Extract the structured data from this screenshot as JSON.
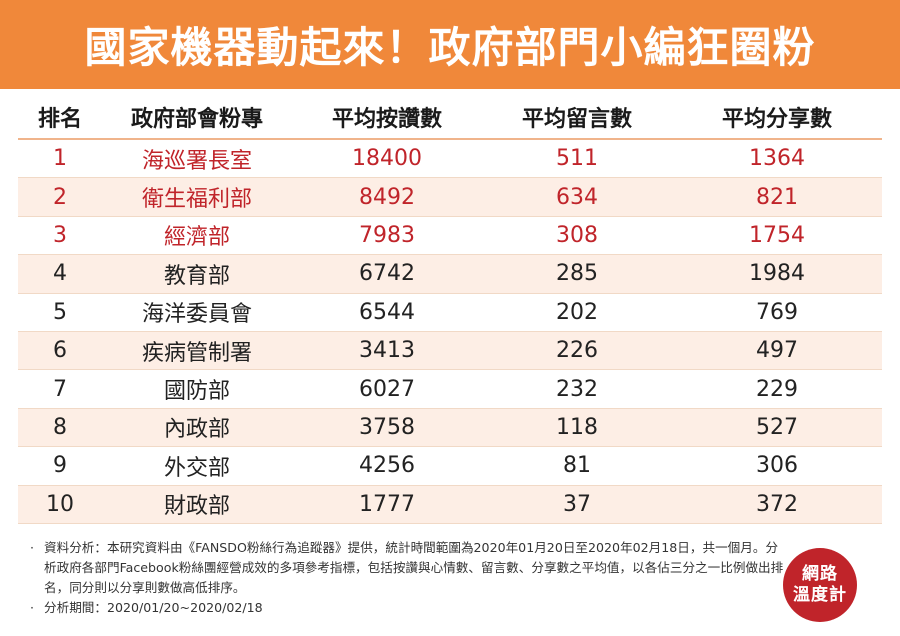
{
  "title": "國家機器動起來！政府部門小編狂圈粉",
  "table": {
    "headers": [
      "排名",
      "政府部會粉專",
      "平均按讚數",
      "平均留言數",
      "平均分享數"
    ],
    "rows": [
      {
        "rank": "1",
        "name": "海巡署長室",
        "likes": "18400",
        "comments": "511",
        "shares": "1364"
      },
      {
        "rank": "2",
        "name": "衛生福利部",
        "likes": "8492",
        "comments": "634",
        "shares": "821"
      },
      {
        "rank": "3",
        "name": "經濟部",
        "likes": "7983",
        "comments": "308",
        "shares": "1754"
      },
      {
        "rank": "4",
        "name": "教育部",
        "likes": "6742",
        "comments": "285",
        "shares": "1984"
      },
      {
        "rank": "5",
        "name": "海洋委員會",
        "likes": "6544",
        "comments": "202",
        "shares": "769"
      },
      {
        "rank": "6",
        "name": "疾病管制署",
        "likes": "3413",
        "comments": "226",
        "shares": "497"
      },
      {
        "rank": "7",
        "name": "國防部",
        "likes": "6027",
        "comments": "232",
        "shares": "229"
      },
      {
        "rank": "8",
        "name": "內政部",
        "likes": "3758",
        "comments": "118",
        "shares": "527"
      },
      {
        "rank": "9",
        "name": "外交部",
        "likes": "4256",
        "comments": "81",
        "shares": "306"
      },
      {
        "rank": "10",
        "name": "財政部",
        "likes": "1777",
        "comments": "37",
        "shares": "372"
      }
    ],
    "highlight_color": "#c0242a",
    "row_alt_color": "#fdeee5"
  },
  "notes": {
    "bullet": "·",
    "analysis": "資料分析：本研究資料由《FANSDO粉絲行為追蹤器》提供，統計時間範圍為2020年01月20日至2020年02月18日，共一個月。分析政府各部門Facebook粉絲團經營成效的多項參考指標，包括按讚與心情數、留言數、分享數之平均值，以各佔三分之一比例做出排名，同分則以分享則數做高低排序。",
    "period": "分析期間：2020/01/20~2020/02/18"
  },
  "logo": {
    "line1": "網路",
    "line2": "溫度計"
  },
  "colors": {
    "header_bg": "#f0883a",
    "logo_bg": "#c0242a"
  }
}
